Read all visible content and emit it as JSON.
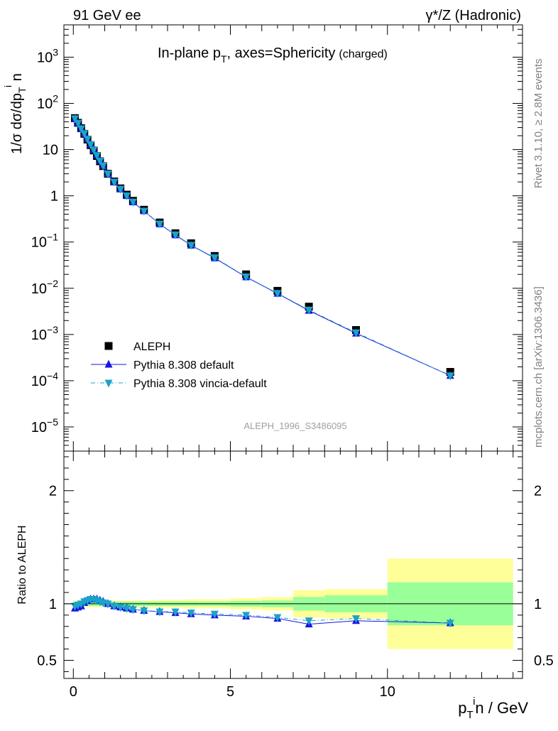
{
  "header": {
    "left": "91 GeV ee",
    "right": "γ*/Z (Hadronic)"
  },
  "plot_title": {
    "main": "In-plane p_T, axes=Sphericity",
    "suffix": "(charged)"
  },
  "side_label_top": "Rivet 3.1.10, ≥ 2.8M events",
  "side_label_bottom": "mcplots.cern.ch [arXiv:1306.3436]",
  "analysis_id": "ALEPH_1996_S3486095",
  "axes": {
    "y_main": "1/σ dσ/dp_T^i n",
    "y_ratio": "Ratio to ALEPH",
    "x": "p_T^i n / GeV"
  },
  "legend": [
    {
      "name": "ALEPH",
      "color": "#000000",
      "marker": "square"
    },
    {
      "name": "Pythia 8.308 default",
      "color": "#1515e0",
      "marker": "triangle-up"
    },
    {
      "name": "Pythia 8.308 vincia-default",
      "color": "#1aa3c9",
      "marker": "triangle-down"
    }
  ],
  "chart_data": {
    "type": "line",
    "x_range": [
      -0.3,
      14.3
    ],
    "main": {
      "yscale": "log",
      "y_range": [
        3e-06,
        5000
      ],
      "y_ticks": [
        {
          "v": 1e-05,
          "b": "10",
          "e": "−5"
        },
        {
          "v": 0.0001,
          "b": "10",
          "e": "−4"
        },
        {
          "v": 0.001,
          "b": "10",
          "e": "−3"
        },
        {
          "v": 0.01,
          "b": "10",
          "e": "−2"
        },
        {
          "v": 0.1,
          "b": "10",
          "e": "−1"
        },
        {
          "v": 1,
          "b": "1",
          "e": ""
        },
        {
          "v": 10,
          "b": "10",
          "e": ""
        },
        {
          "v": 100,
          "b": "10",
          "e": "2"
        },
        {
          "v": 1000,
          "b": "10",
          "e": "3"
        }
      ]
    },
    "ratio": {
      "yscale": "linear",
      "y_range": [
        0.34,
        2.35
      ],
      "y_ticks": [
        0.5,
        1,
        2
      ]
    },
    "x_ticks": [
      0,
      5,
      10
    ],
    "x": [
      0.05,
      0.15,
      0.25,
      0.35,
      0.45,
      0.55,
      0.65,
      0.75,
      0.85,
      0.95,
      1.1,
      1.3,
      1.5,
      1.7,
      1.9,
      2.25,
      2.75,
      3.25,
      3.75,
      4.5,
      5.5,
      6.5,
      7.5,
      9.0,
      12.0
    ],
    "bins": [
      [
        0,
        0.1
      ],
      [
        0.1,
        0.2
      ],
      [
        0.2,
        0.3
      ],
      [
        0.3,
        0.4
      ],
      [
        0.4,
        0.5
      ],
      [
        0.5,
        0.6
      ],
      [
        0.6,
        0.7
      ],
      [
        0.7,
        0.8
      ],
      [
        0.8,
        0.9
      ],
      [
        0.9,
        1.0
      ],
      [
        1.0,
        1.2
      ],
      [
        1.2,
        1.4
      ],
      [
        1.4,
        1.6
      ],
      [
        1.6,
        1.8
      ],
      [
        1.8,
        2.0
      ],
      [
        2.0,
        2.5
      ],
      [
        2.5,
        3.0
      ],
      [
        3.0,
        3.5
      ],
      [
        3.5,
        4.0
      ],
      [
        4.0,
        5.0
      ],
      [
        5.0,
        6.0
      ],
      [
        6.0,
        7.0
      ],
      [
        7.0,
        8.0
      ],
      [
        8.0,
        10.0
      ],
      [
        10.0,
        14.0
      ]
    ],
    "series": [
      {
        "name": "ALEPH",
        "values": [
          48,
          38,
          29,
          22,
          16.5,
          12.5,
          9.6,
          7.3,
          5.6,
          4.4,
          3.0,
          2.05,
          1.45,
          1.06,
          0.78,
          0.5,
          0.265,
          0.155,
          0.094,
          0.05,
          0.02,
          0.0088,
          0.004,
          0.00125,
          0.000155
        ],
        "ratio": [
          1,
          1,
          1,
          1,
          1,
          1,
          1,
          1,
          1,
          1,
          1,
          1,
          1,
          1,
          1,
          1,
          1,
          1,
          1,
          1,
          1,
          1,
          1,
          1,
          1
        ]
      },
      {
        "name": "Pythia 8.308 default",
        "values": [
          46,
          37,
          28,
          22.3,
          17,
          13,
          10,
          7.6,
          5.8,
          4.5,
          3.0,
          2.0,
          1.4,
          1.0,
          0.73,
          0.47,
          0.245,
          0.142,
          0.085,
          0.045,
          0.0175,
          0.0077,
          0.0033,
          0.00106,
          0.000129
        ],
        "ratio": [
          0.96,
          0.97,
          0.98,
          1.01,
          1.03,
          1.04,
          1.04,
          1.04,
          1.03,
          1.02,
          1.0,
          0.98,
          0.97,
          0.96,
          0.95,
          0.94,
          0.93,
          0.92,
          0.91,
          0.9,
          0.89,
          0.87,
          0.82,
          0.85,
          0.83
        ]
      },
      {
        "name": "Pythia 8.308 vincia-default",
        "values": [
          47,
          37.5,
          28.5,
          22.5,
          17,
          12.9,
          9.9,
          7.5,
          5.7,
          4.5,
          3.0,
          2.0,
          1.4,
          1.01,
          0.74,
          0.47,
          0.247,
          0.144,
          0.086,
          0.046,
          0.0178,
          0.0078,
          0.0034,
          0.0011,
          0.000129
        ],
        "ratio": [
          0.98,
          0.99,
          1.0,
          1.02,
          1.03,
          1.04,
          1.04,
          1.03,
          1.02,
          1.01,
          1.0,
          0.98,
          0.97,
          0.96,
          0.95,
          0.94,
          0.93,
          0.93,
          0.92,
          0.91,
          0.9,
          0.88,
          0.85,
          0.87,
          0.83
        ]
      }
    ],
    "band_stat": [
      0.02,
      0.02,
      0.02,
      0.02,
      0.02,
      0.02,
      0.02,
      0.02,
      0.02,
      0.02,
      0.02,
      0.02,
      0.02,
      0.02,
      0.02,
      0.02,
      0.02,
      0.02,
      0.02,
      0.02,
      0.025,
      0.03,
      0.06,
      0.075,
      0.19
    ],
    "band_total": [
      0.03,
      0.03,
      0.03,
      0.03,
      0.03,
      0.03,
      0.03,
      0.03,
      0.03,
      0.03,
      0.03,
      0.03,
      0.03,
      0.03,
      0.03,
      0.03,
      0.035,
      0.035,
      0.04,
      0.04,
      0.05,
      0.06,
      0.12,
      0.13,
      0.4
    ]
  }
}
